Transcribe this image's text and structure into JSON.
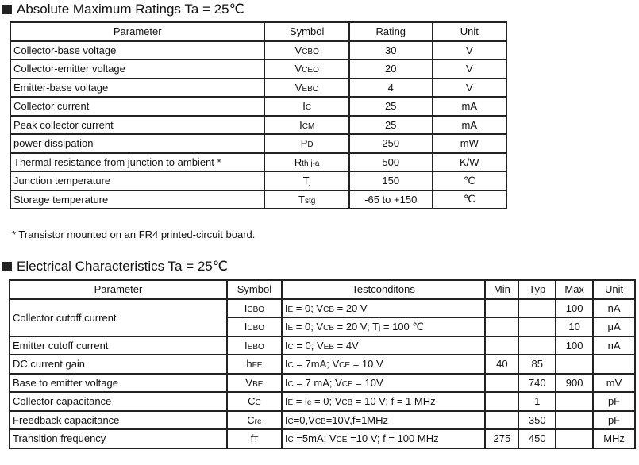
{
  "section1": {
    "title": "Absolute Maximum Ratings Ta = 25℃",
    "headers": [
      "Parameter",
      "Symbol",
      "Rating",
      "Unit"
    ],
    "rows": [
      {
        "param": "Collector-base voltage",
        "sym": [
          [
            "V",
            0
          ],
          [
            "CBO",
            1
          ]
        ],
        "rating": "30",
        "unit": "V"
      },
      {
        "param": "Collector-emitter voltage",
        "sym": [
          [
            "V",
            0
          ],
          [
            "CEO",
            1
          ]
        ],
        "rating": "20",
        "unit": "V"
      },
      {
        "param": "Emitter-base voltage",
        "sym": [
          [
            "V",
            0
          ],
          [
            "EBO",
            1
          ]
        ],
        "rating": "4",
        "unit": "V"
      },
      {
        "param": "Collector current",
        "sym": [
          [
            "I",
            0
          ],
          [
            "C",
            1
          ]
        ],
        "rating": "25",
        "unit": "mA"
      },
      {
        "param": "Peak collector current",
        "sym": [
          [
            "I",
            0
          ],
          [
            "CM",
            1
          ]
        ],
        "rating": "25",
        "unit": "mA"
      },
      {
        "param": " power dissipation",
        "sym": [
          [
            "P",
            0
          ],
          [
            "D",
            1
          ]
        ],
        "rating": "250",
        "unit": "mW"
      },
      {
        "param": "Thermal resistance from junction to ambient  *",
        "sym": [
          [
            "R",
            0
          ],
          [
            "th j-a",
            1
          ]
        ],
        "rating": "500",
        "unit": "K/W"
      },
      {
        "param": "Junction temperature",
        "sym": [
          [
            "T",
            0
          ],
          [
            "j",
            1
          ]
        ],
        "rating": "150",
        "unit": "℃"
      },
      {
        "param": "Storage temperature",
        "sym": [
          [
            "T",
            0
          ],
          [
            "stg",
            1
          ]
        ],
        "rating": "-65 to +150",
        "unit": "℃"
      }
    ],
    "note": "* Transistor mounted on an FR4 printed-circuit board."
  },
  "section2": {
    "title": "Electrical Characteristics Ta = 25℃",
    "headers": [
      "Parameter",
      "Symbol",
      "Testconditons",
      "Min",
      "Typ",
      "Max",
      "Unit"
    ],
    "rows": [
      {
        "param": "Collector cutoff current",
        "span": 2,
        "sym": [
          [
            "I",
            0
          ],
          [
            "CBO",
            1
          ]
        ],
        "cond": [
          [
            "I",
            0
          ],
          [
            "E",
            1
          ],
          [
            " = 0; V",
            0
          ],
          [
            "CB",
            1
          ],
          [
            " = 20 V",
            0
          ]
        ],
        "min": "",
        "typ": "",
        "max": "100",
        "unit": "nA"
      },
      {
        "param": null,
        "sym": [
          [
            "I",
            0
          ],
          [
            "CBO",
            1
          ]
        ],
        "cond": [
          [
            "I",
            0
          ],
          [
            "E",
            1
          ],
          [
            " = 0; V",
            0
          ],
          [
            "CB",
            1
          ],
          [
            " = 20 V; T",
            0
          ],
          [
            "j",
            1
          ],
          [
            " = 100 ℃",
            0
          ]
        ],
        "min": "",
        "typ": "",
        "max": "10",
        "unit": "μA"
      },
      {
        "param": "Emitter cutoff current",
        "sym": [
          [
            "I",
            0
          ],
          [
            "EBO",
            1
          ]
        ],
        "cond": [
          [
            "I",
            0
          ],
          [
            "C",
            1
          ],
          [
            " = 0; V",
            0
          ],
          [
            "EB",
            1
          ],
          [
            " = 4V",
            0
          ]
        ],
        "min": "",
        "typ": "",
        "max": "100",
        "unit": "nA"
      },
      {
        "param": "DC current gain",
        "sym": [
          [
            "h",
            0
          ],
          [
            "FE",
            1
          ]
        ],
        "cond": [
          [
            "I",
            0
          ],
          [
            "C",
            1
          ],
          [
            " = 7mA; V",
            0
          ],
          [
            "CE",
            1
          ],
          [
            " = 10 V",
            0
          ]
        ],
        "min": "40",
        "typ": "85",
        "max": "",
        "unit": ""
      },
      {
        "param": "Base to emitter voltage",
        "sym": [
          [
            "V",
            0
          ],
          [
            "BE",
            1
          ]
        ],
        "cond": [
          [
            "I",
            0
          ],
          [
            "C",
            1
          ],
          [
            " = 7 mA; V",
            0
          ],
          [
            "CE",
            1
          ],
          [
            " = 10V",
            0
          ]
        ],
        "min": "",
        "typ": "740",
        "max": "900",
        "unit": "mV"
      },
      {
        "param": "Collector capacitance",
        "sym": [
          [
            "C",
            0
          ],
          [
            "C",
            1
          ]
        ],
        "cond": [
          [
            "I",
            0
          ],
          [
            "E",
            1
          ],
          [
            " = i",
            0
          ],
          [
            "e",
            1
          ],
          [
            " = 0; V",
            0
          ],
          [
            "CB",
            1
          ],
          [
            " = 10 V; f = 1 MHz",
            0
          ]
        ],
        "min": "",
        "typ": "1",
        "max": "",
        "unit": "pF"
      },
      {
        "param": "Freedback capacitance",
        "sym": [
          [
            "C",
            0
          ],
          [
            "re",
            1
          ]
        ],
        "cond": [
          [
            "I",
            0
          ],
          [
            "C",
            1
          ],
          [
            "=0,V",
            0
          ],
          [
            "CB",
            1
          ],
          [
            "=10V,f=1MHz",
            0
          ]
        ],
        "min": "",
        "typ": "350",
        "max": "",
        "unit": "pF"
      },
      {
        "param": "Transition frequency",
        "sym": [
          [
            "f",
            0
          ],
          [
            "T",
            1
          ]
        ],
        "cond": [
          [
            "I",
            0
          ],
          [
            "C",
            1
          ],
          [
            " =5mA; V",
            0
          ],
          [
            "CE",
            1
          ],
          [
            " =10 V; f = 100 MHz",
            0
          ]
        ],
        "min": "275",
        "typ": "450",
        "max": "",
        "unit": "MHz"
      }
    ]
  }
}
